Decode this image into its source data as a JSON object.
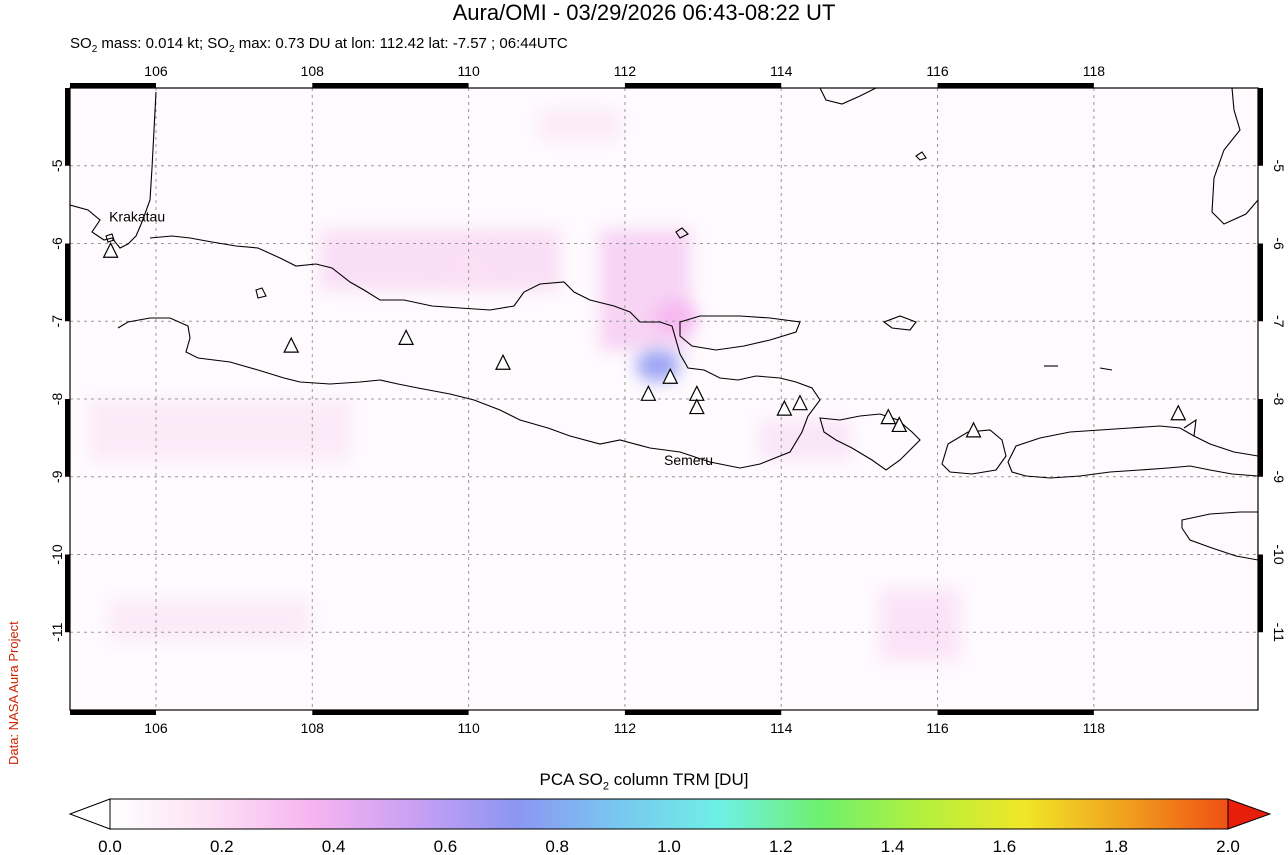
{
  "header": {
    "title": "Aura/OMI - 03/29/2026 06:43-08:22 UT",
    "subtitle_prefix": "SO",
    "subtitle_sub": "2",
    "subtitle_mid": " mass: 0.014 kt; SO",
    "subtitle_sub2": "2",
    "subtitle_rest": " max: 0.73 DU at lon: 112.42 lat: -7.57 ; 06:44UTC"
  },
  "credit": "Data: NASA Aura Project",
  "map": {
    "lon_range": [
      104.9,
      120.1
    ],
    "lat_range": [
      -12.0,
      -4.0
    ],
    "lon_ticks": [
      106,
      108,
      110,
      112,
      114,
      116,
      118
    ],
    "lat_ticks": [
      -5,
      -6,
      -7,
      -8,
      -9,
      -10,
      -11
    ],
    "lon_tick_labels": [
      "106",
      "108",
      "110",
      "112",
      "114",
      "116",
      "118"
    ],
    "lat_tick_labels": [
      "-5",
      "-6",
      "-7",
      "-8",
      "-9",
      "-10",
      "-11"
    ],
    "grid": true,
    "labels": [
      {
        "text": "Krakatau",
        "lon": 105.4,
        "lat": -5.72
      },
      {
        "text": "Semeru",
        "lon": 112.5,
        "lat": -8.85
      }
    ],
    "volcanoes": [
      {
        "lon": 105.42,
        "lat": -6.1
      },
      {
        "lon": 107.73,
        "lat": -7.32
      },
      {
        "lon": 109.2,
        "lat": -7.22
      },
      {
        "lon": 110.44,
        "lat": -7.54
      },
      {
        "lon": 112.3,
        "lat": -7.94
      },
      {
        "lon": 112.58,
        "lat": -7.72
      },
      {
        "lon": 112.92,
        "lat": -7.94
      },
      {
        "lon": 112.92,
        "lat": -8.11
      },
      {
        "lon": 114.04,
        "lat": -8.13
      },
      {
        "lon": 114.24,
        "lat": -8.06
      },
      {
        "lon": 115.37,
        "lat": -8.24
      },
      {
        "lon": 115.51,
        "lat": -8.34
      },
      {
        "lon": 116.46,
        "lat": -8.41
      },
      {
        "lon": 119.08,
        "lat": -8.19
      }
    ],
    "so2_hotspots": [
      {
        "lon": 112.42,
        "lat": -7.57,
        "value": 0.73
      },
      {
        "lon": 112.65,
        "lat": -6.95,
        "value": 0.45
      },
      {
        "lon": 110.0,
        "lat": -6.3,
        "value": 0.25
      }
    ]
  },
  "colorbar": {
    "title_prefix": "PCA SO",
    "title_sub": "2",
    "title_rest": " column TRM [DU]",
    "min": 0.0,
    "max": 2.0,
    "tick_values": [
      0.0,
      0.2,
      0.4,
      0.6,
      0.8,
      1.0,
      1.2,
      1.4,
      1.6,
      1.8,
      2.0
    ],
    "tick_labels": [
      "0.0",
      "0.2",
      "0.4",
      "0.6",
      "0.8",
      "1.0",
      "1.2",
      "1.4",
      "1.6",
      "1.8",
      "2.0"
    ],
    "colors": [
      "#ffffff",
      "#fde0f4",
      "#f6b4f0",
      "#c8a0f4",
      "#8c96f2",
      "#78c8f0",
      "#6ef0e6",
      "#6ef06e",
      "#b4f03c",
      "#f0e628",
      "#f0a01e",
      "#f05014",
      "#e61e0a"
    ]
  }
}
